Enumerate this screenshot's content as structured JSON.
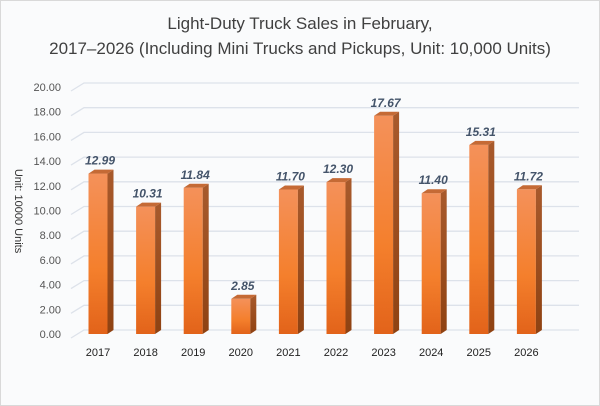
{
  "chart_data": {
    "type": "bar",
    "title_line1": "Light-Duty Truck Sales in February,",
    "title_line2": "2017–2026 (Including Mini Trucks and Pickups, Unit: 10,000 Units)",
    "ylabel": "Unit: 10000 Units",
    "xlabel": "",
    "categories": [
      "2017",
      "2018",
      "2019",
      "2020",
      "2021",
      "2022",
      "2023",
      "2024",
      "2025",
      "2026"
    ],
    "values": [
      12.99,
      10.31,
      11.84,
      2.85,
      11.7,
      12.3,
      17.67,
      11.4,
      15.31,
      11.72
    ],
    "value_labels": [
      "12.99",
      "10.31",
      "11.84",
      "2.85",
      "11.70",
      "12.30",
      "17.67",
      "11.40",
      "15.31",
      "11.72"
    ],
    "ylim": [
      0,
      20
    ],
    "yticks": [
      "0.00",
      "2.00",
      "4.00",
      "6.00",
      "8.00",
      "10.00",
      "12.00",
      "14.00",
      "16.00",
      "18.00",
      "20.00"
    ],
    "grid": true,
    "legend": "none",
    "colors": {
      "bar_top": "#f4915a",
      "bar_bottom": "#e8661c",
      "bar_side": "#a14d1c",
      "bar_cap": "#c56a35",
      "label": "#44546a",
      "grid": "#dde2ea"
    }
  }
}
